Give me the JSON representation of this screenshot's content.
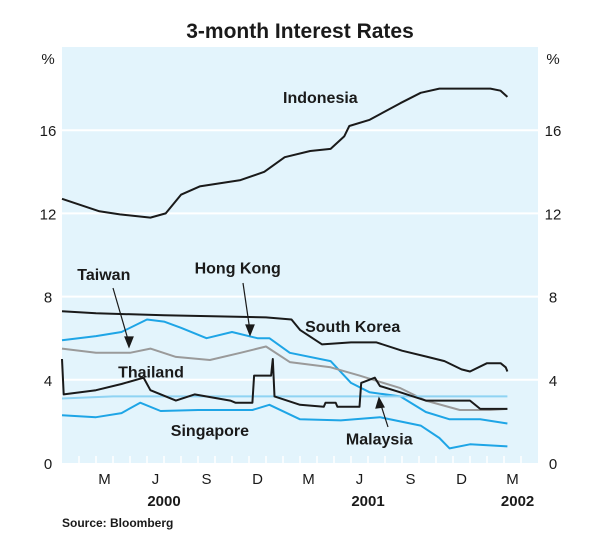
{
  "chart_data": {
    "type": "line",
    "title": "3-month Interest Rates",
    "ylabel_left": "%",
    "ylabel_right": "%",
    "ylim": [
      0,
      20
    ],
    "yticks": [
      0,
      4,
      8,
      12,
      16
    ],
    "xlim_months_from_jan2000": [
      0,
      28
    ],
    "month_ticks": [
      {
        "label": "M",
        "m": 2.5
      },
      {
        "label": "J",
        "m": 5.5
      },
      {
        "label": "S",
        "m": 8.5
      },
      {
        "label": "D",
        "m": 11.5
      },
      {
        "label": "M",
        "m": 14.5
      },
      {
        "label": "J",
        "m": 17.5
      },
      {
        "label": "S",
        "m": 20.5
      },
      {
        "label": "D",
        "m": 23.5
      },
      {
        "label": "M",
        "m": 26.5
      }
    ],
    "year_labels": [
      {
        "label": "2000",
        "m": 6
      },
      {
        "label": "2001",
        "m": 18
      },
      {
        "label": "2002",
        "m": 26.8
      }
    ],
    "source": "Source: Bloomberg",
    "grid": true,
    "series": [
      {
        "name": "Indonesia",
        "color": "#1a1a1a",
        "points": [
          [
            0,
            12.7
          ],
          [
            1.1,
            12.4
          ],
          [
            2.2,
            12.1
          ],
          [
            3.4,
            11.95
          ],
          [
            5.2,
            11.8
          ],
          [
            6.1,
            12.0
          ],
          [
            7,
            12.9
          ],
          [
            8.1,
            13.3
          ],
          [
            10.5,
            13.6
          ],
          [
            11.9,
            14.0
          ],
          [
            13.1,
            14.7
          ],
          [
            14.6,
            15.0
          ],
          [
            15.8,
            15.1
          ],
          [
            16.6,
            15.7
          ],
          [
            16.9,
            16.2
          ],
          [
            18.1,
            16.5
          ],
          [
            19.9,
            17.3
          ],
          [
            21.1,
            17.8
          ],
          [
            22.2,
            18.0
          ],
          [
            25.2,
            18.0
          ],
          [
            25.8,
            17.9
          ],
          [
            26.2,
            17.6
          ]
        ]
      },
      {
        "name": "South Korea",
        "color": "#1a1a1a",
        "points": [
          [
            0,
            7.3
          ],
          [
            2,
            7.2
          ],
          [
            6,
            7.1
          ],
          [
            12,
            7.0
          ],
          [
            13.5,
            6.9
          ],
          [
            14,
            6.4
          ],
          [
            15.3,
            5.7
          ],
          [
            17,
            5.8
          ],
          [
            18.5,
            5.8
          ],
          [
            20,
            5.4
          ],
          [
            21.5,
            5.1
          ],
          [
            22.5,
            4.9
          ],
          [
            23.5,
            4.5
          ],
          [
            24,
            4.4
          ],
          [
            25,
            4.8
          ],
          [
            25.8,
            4.8
          ],
          [
            26.1,
            4.6
          ],
          [
            26.2,
            4.4
          ]
        ]
      },
      {
        "name": "Hong Kong",
        "color": "#1ea5e6",
        "points": [
          [
            0,
            5.9
          ],
          [
            2,
            6.1
          ],
          [
            3.5,
            6.3
          ],
          [
            5,
            6.9
          ],
          [
            6,
            6.8
          ],
          [
            7,
            6.5
          ],
          [
            8.5,
            6.0
          ],
          [
            10,
            6.3
          ],
          [
            11.5,
            6.0
          ],
          [
            12.2,
            6.0
          ],
          [
            13.4,
            5.3
          ],
          [
            15.8,
            4.9
          ],
          [
            17,
            3.85
          ],
          [
            18.1,
            3.4
          ],
          [
            19.9,
            3.2
          ],
          [
            21.4,
            2.45
          ],
          [
            22.8,
            2.1
          ],
          [
            24.6,
            2.1
          ],
          [
            26.2,
            1.9
          ]
        ]
      },
      {
        "name": "Taiwan",
        "color": "#9a9a9a",
        "points": [
          [
            0,
            5.5
          ],
          [
            2,
            5.3
          ],
          [
            4,
            5.3
          ],
          [
            5.2,
            5.5
          ],
          [
            6.7,
            5.1
          ],
          [
            8.7,
            4.95
          ],
          [
            10.5,
            5.3
          ],
          [
            12,
            5.6
          ],
          [
            13.4,
            4.85
          ],
          [
            15.8,
            4.6
          ],
          [
            17.5,
            4.2
          ],
          [
            19.9,
            3.6
          ],
          [
            21.4,
            3.0
          ],
          [
            23.4,
            2.55
          ],
          [
            25.2,
            2.55
          ],
          [
            26.2,
            2.6
          ]
        ]
      },
      {
        "name": "Malaysia",
        "color": "#8fd3f3",
        "points": [
          [
            0,
            3.1
          ],
          [
            3,
            3.2
          ],
          [
            26.2,
            3.2
          ]
        ]
      },
      {
        "name": "Thailand",
        "color": "#1a1a1a",
        "points": [
          [
            0,
            5.0
          ],
          [
            0.1,
            3.3
          ],
          [
            2,
            3.5
          ],
          [
            3.5,
            3.8
          ],
          [
            4.8,
            4.1
          ],
          [
            5.2,
            3.5
          ],
          [
            6.7,
            3.0
          ],
          [
            7.8,
            3.3
          ],
          [
            9.9,
            3.0
          ],
          [
            10.2,
            2.9
          ],
          [
            11.2,
            2.9
          ],
          [
            11.3,
            4.2
          ],
          [
            12.3,
            4.2
          ],
          [
            12.4,
            5.0
          ],
          [
            12.5,
            3.2
          ],
          [
            14,
            2.8
          ],
          [
            15.4,
            2.7
          ],
          [
            15.5,
            2.9
          ],
          [
            16.1,
            2.9
          ],
          [
            16.2,
            2.7
          ],
          [
            17.5,
            2.7
          ],
          [
            17.6,
            3.85
          ],
          [
            18.4,
            4.1
          ],
          [
            18.7,
            3.7
          ],
          [
            19.9,
            3.4
          ],
          [
            21.4,
            3.0
          ],
          [
            24,
            3.0
          ],
          [
            24.6,
            2.6
          ],
          [
            26.2,
            2.6
          ]
        ]
      },
      {
        "name": "Singapore",
        "color": "#1ea5e6",
        "points": [
          [
            0,
            2.3
          ],
          [
            2,
            2.2
          ],
          [
            3.5,
            2.4
          ],
          [
            4.6,
            2.9
          ],
          [
            5.8,
            2.5
          ],
          [
            8,
            2.55
          ],
          [
            11.2,
            2.55
          ],
          [
            12.2,
            2.8
          ],
          [
            14,
            2.1
          ],
          [
            16.4,
            2.05
          ],
          [
            18.7,
            2.2
          ],
          [
            21.1,
            1.8
          ],
          [
            22.2,
            1.2
          ],
          [
            22.8,
            0.7
          ],
          [
            24,
            0.9
          ],
          [
            26.2,
            0.8
          ]
        ]
      }
    ],
    "annotations": [
      {
        "text": "Indonesia",
        "m": 13,
        "v": 17.3
      },
      {
        "text": "South Korea",
        "m": 14.3,
        "v": 6.3
      },
      {
        "text": "Hong Kong",
        "m": 7.8,
        "v": 9.1
      },
      {
        "text": "Taiwan",
        "m": 0.9,
        "v": 8.8
      },
      {
        "text": "Thailand",
        "m": 3.3,
        "v": 4.1
      },
      {
        "text": "Singapore",
        "m": 6.4,
        "v": 1.3
      },
      {
        "text": "Malaysia",
        "m": 16.7,
        "v": 0.9
      }
    ]
  }
}
